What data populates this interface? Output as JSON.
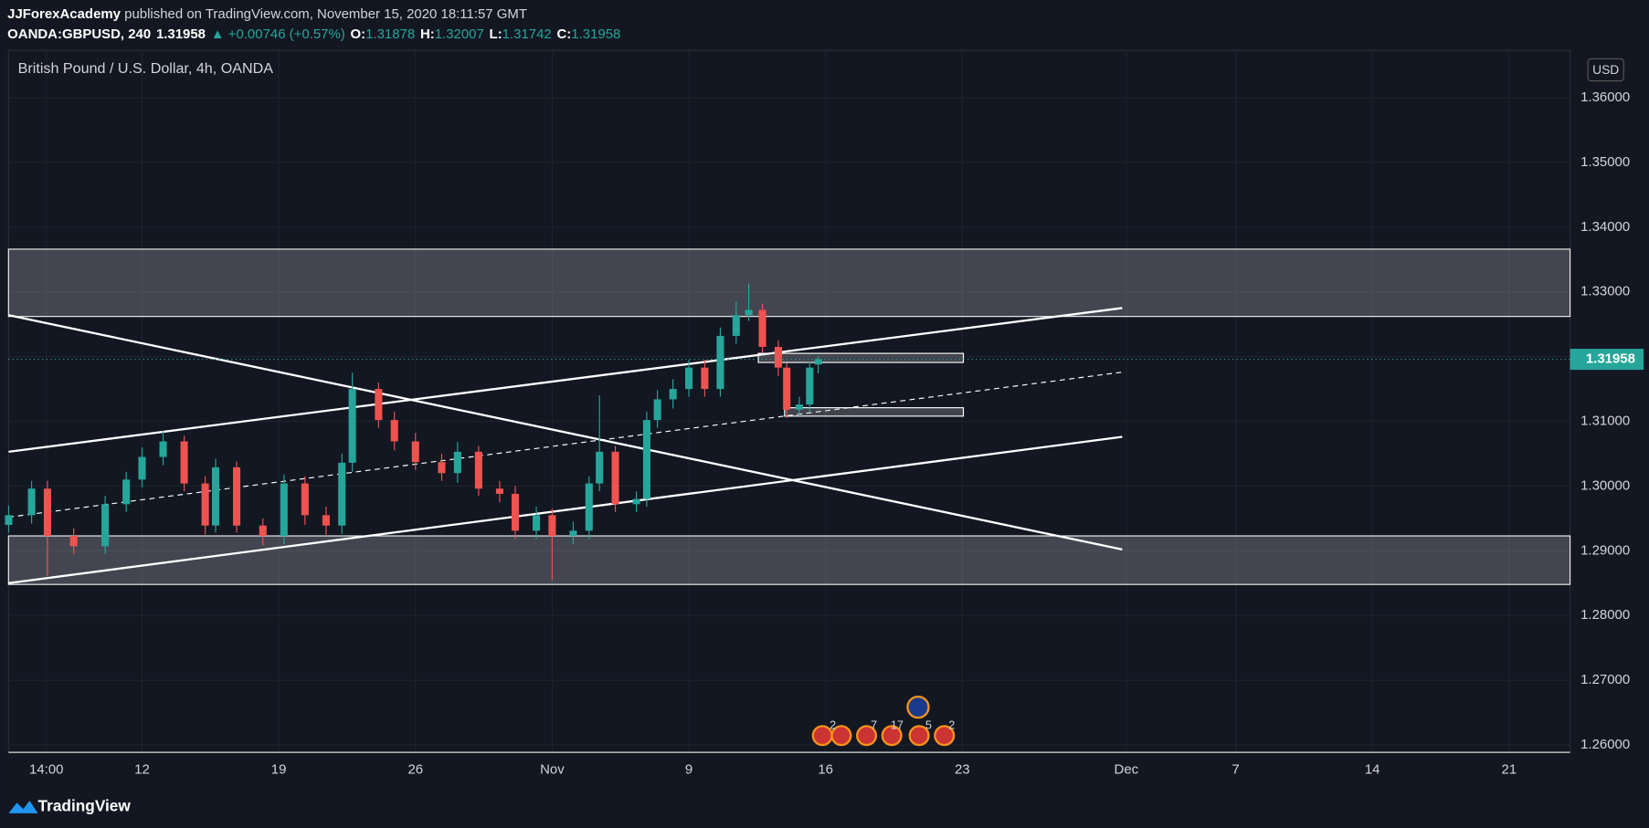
{
  "header": {
    "author": "JJForexAcademy",
    "published": " published on TradingView.com, November 15, 2020 18:11:57 GMT",
    "symbol": "OANDA:GBPUSD, 240",
    "last": "1.31958",
    "change": "▲ +0.00746 (+0.57%)",
    "o_label": "O:",
    "o": "1.31878",
    "h_label": "H:",
    "h": "1.32007",
    "l_label": "L:",
    "l": "1.31742",
    "c_label": "C:",
    "c": "1.31958"
  },
  "chart_data": {
    "type": "candlestick",
    "title": "British Pound / U.S. Dollar, 4h, OANDA",
    "currency": "USD",
    "x": [
      -4.88,
      -4.04,
      -3.46,
      -2.5,
      -1.35,
      -0.58,
      0,
      0.77,
      1.54,
      2.31,
      2.69,
      3.46,
      4.42,
      5.19,
      5.96,
      6.73,
      7.31,
      7.69,
      8.65,
      9.23,
      10,
      10.96,
      11.54,
      12.31,
      13.08,
      13.65,
      14.42,
      15,
      15.77,
      16.35,
      16.73,
      17.31,
      18.08,
      18.46,
      18.85,
      19.42,
      20,
      20.58,
      21.15,
      21.73,
      22.19,
      22.69,
      23.27,
      23.58,
      24.04,
      24.42,
      24.73
    ],
    "open": [
      1.294,
      1.2955,
      1.2996,
      1.2923,
      1.2907,
      1.2972,
      1.301,
      1.3045,
      1.3069,
      1.3004,
      1.2939,
      1.3029,
      1.2939,
      1.2923,
      1.3004,
      1.2955,
      1.2939,
      1.3036,
      1.315,
      1.3102,
      1.3069,
      1.3037,
      1.302,
      1.3053,
      1.2996,
      1.2988,
      1.2931,
      1.2955,
      1.2923,
      1.2931,
      1.3004,
      1.3053,
      1.2972,
      1.298,
      1.3102,
      1.3134,
      1.315,
      1.3183,
      1.315,
      1.3232,
      1.3264,
      1.3272,
      1.3215,
      1.3183,
      1.3118,
      1.3126,
      1.31878
    ],
    "high": [
      1.297,
      1.3008,
      1.3008,
      1.2935,
      1.2985,
      1.3022,
      1.306,
      1.3085,
      1.3078,
      1.3015,
      1.3042,
      1.3038,
      1.295,
      1.3018,
      1.3015,
      1.2968,
      1.305,
      1.3175,
      1.316,
      1.3115,
      1.3082,
      1.305,
      1.3068,
      1.3062,
      1.3008,
      1.3,
      1.2968,
      1.2965,
      1.2945,
      1.3015,
      1.314,
      1.3062,
      1.2992,
      1.3115,
      1.3148,
      1.3165,
      1.3195,
      1.3195,
      1.3245,
      1.3285,
      1.3313,
      1.3282,
      1.3225,
      1.319,
      1.3138,
      1.3192,
      1.32007
    ],
    "low": [
      1.2928,
      1.2942,
      1.2861,
      1.2895,
      1.2895,
      1.296,
      1.2998,
      1.3032,
      1.2992,
      1.2925,
      1.2928,
      1.2928,
      1.2908,
      1.291,
      1.294,
      1.2925,
      1.2926,
      1.3022,
      1.309,
      1.3055,
      1.3025,
      1.3008,
      1.3005,
      1.2985,
      1.2975,
      1.2918,
      1.2918,
      1.2855,
      1.291,
      1.2918,
      1.2992,
      1.296,
      1.296,
      1.2968,
      1.309,
      1.312,
      1.3138,
      1.3138,
      1.3138,
      1.322,
      1.3255,
      1.3205,
      1.317,
      1.3105,
      1.3108,
      1.3115,
      1.31742
    ],
    "close": [
      1.2955,
      1.2996,
      1.2923,
      1.2907,
      1.2972,
      1.301,
      1.3045,
      1.3069,
      1.3004,
      1.2939,
      1.3029,
      1.2939,
      1.2923,
      1.3004,
      1.2955,
      1.2939,
      1.3036,
      1.315,
      1.3102,
      1.3069,
      1.3037,
      1.302,
      1.3053,
      1.2996,
      1.2988,
      1.2931,
      1.2955,
      1.2923,
      1.2931,
      1.3004,
      1.3053,
      1.2972,
      1.298,
      1.3102,
      1.3134,
      1.315,
      1.3183,
      1.315,
      1.3232,
      1.3264,
      1.3272,
      1.3215,
      1.3183,
      1.3118,
      1.3126,
      1.3183,
      1.31958
    ],
    "up_color": "#26a69a",
    "down_color": "#ef5350",
    "last_price": {
      "value": 1.31958,
      "label": "1.31958"
    },
    "xlim": [
      -4.885,
      52.23
    ],
    "ylim": [
      1.25886,
      1.3673
    ],
    "xticks": [
      {
        "value": -3.5,
        "label": "14:00"
      },
      {
        "value": 0,
        "label": "12"
      },
      {
        "value": 5,
        "label": "19"
      },
      {
        "value": 10,
        "label": "26"
      },
      {
        "value": 15,
        "label": "Nov"
      },
      {
        "value": 20,
        "label": "9"
      },
      {
        "value": 25,
        "label": "16"
      },
      {
        "value": 30,
        "label": "23"
      },
      {
        "value": 36,
        "label": "Dec"
      },
      {
        "value": 40,
        "label": "7"
      },
      {
        "value": 45,
        "label": "14"
      },
      {
        "value": 50,
        "label": "21"
      }
    ],
    "yticks": [
      {
        "value": 1.26,
        "label": "1.26000"
      },
      {
        "value": 1.27,
        "label": "1.27000"
      },
      {
        "value": 1.28,
        "label": "1.28000"
      },
      {
        "value": 1.29,
        "label": "1.29000"
      },
      {
        "value": 1.3,
        "label": "1.30000"
      },
      {
        "value": 1.31,
        "label": "1.31000"
      },
      {
        "value": 1.32,
        "label": "1.32000"
      },
      {
        "value": 1.33,
        "label": "1.33000"
      },
      {
        "value": 1.34,
        "label": "1.34000"
      },
      {
        "value": 1.35,
        "label": "1.35000"
      },
      {
        "value": 1.36,
        "label": "1.36000"
      }
    ],
    "grid": true,
    "zones": [
      [
        1.3366,
        1.3262
      ],
      [
        1.2923,
        1.2848
      ]
    ],
    "trendlines": [
      {
        "x": [
          -4.88,
          35.85
        ],
        "y": [
          1.3264,
          1.2902
        ],
        "dashed": false
      },
      {
        "x": [
          -4.88,
          35.85
        ],
        "y": [
          1.3053,
          1.3275
        ],
        "dashed": false
      },
      {
        "x": [
          -4.88,
          35.85
        ],
        "y": [
          1.2952,
          1.3176
        ],
        "dashed": true
      },
      {
        "x": [
          -4.88,
          35.85
        ],
        "y": [
          1.285,
          1.3076
        ],
        "dashed": false
      }
    ],
    "boxes": [
      {
        "x": [
          22.54,
          30.04
        ],
        "y": [
          1.3205,
          1.3191
        ]
      },
      {
        "x": [
          23.5,
          30.04
        ],
        "y": [
          1.3121,
          1.3108
        ]
      }
    ],
    "events": [
      2,
      7,
      17,
      5,
      2
    ]
  },
  "footer": {
    "brand": "TradingView"
  }
}
